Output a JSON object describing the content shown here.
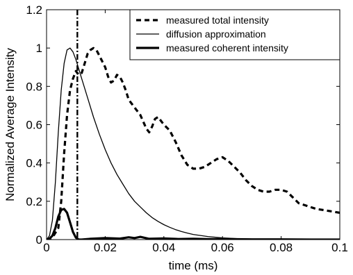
{
  "chart_data": {
    "type": "line",
    "xlabel": "time (ms)",
    "ylabel": "Normalized Average Intensity",
    "xlim": [
      0,
      0.1
    ],
    "ylim": [
      0,
      1.2
    ],
    "x_ticks": [
      0,
      0.02,
      0.04,
      0.06,
      0.08,
      0.1
    ],
    "x_tick_labels": [
      "0",
      "0.02",
      "0.04",
      "0.06",
      "0.08",
      "0.1"
    ],
    "y_ticks": [
      0,
      0.2,
      0.4,
      0.6,
      0.8,
      1,
      1.2
    ],
    "y_tick_labels": [
      "0",
      "0.2",
      "0.4",
      "0.6",
      "0.8",
      "1",
      "1.2"
    ],
    "grid": false,
    "legend_position": "top-right",
    "vertical_marker": {
      "x": 0.0105,
      "style": "dash-dot"
    },
    "series": [
      {
        "name": "measured total intensity",
        "style": "dashed-thick",
        "x": [
          0.0,
          0.002,
          0.004,
          0.005,
          0.006,
          0.007,
          0.008,
          0.009,
          0.01,
          0.011,
          0.012,
          0.013,
          0.014,
          0.015,
          0.016,
          0.017,
          0.018,
          0.019,
          0.02,
          0.021,
          0.022,
          0.023,
          0.024,
          0.025,
          0.026,
          0.027,
          0.028,
          0.03,
          0.032,
          0.034,
          0.035,
          0.036,
          0.037,
          0.038,
          0.039,
          0.04,
          0.042,
          0.044,
          0.046,
          0.048,
          0.05,
          0.052,
          0.054,
          0.056,
          0.058,
          0.06,
          0.062,
          0.064,
          0.066,
          0.068,
          0.07,
          0.072,
          0.074,
          0.076,
          0.078,
          0.08,
          0.082,
          0.084,
          0.086,
          0.088,
          0.09,
          0.092,
          0.094,
          0.096,
          0.098,
          0.1
        ],
        "y": [
          0.0,
          0.01,
          0.06,
          0.2,
          0.45,
          0.65,
          0.78,
          0.84,
          0.88,
          0.86,
          0.87,
          0.92,
          0.97,
          0.99,
          1.0,
          0.99,
          0.96,
          0.93,
          0.9,
          0.85,
          0.82,
          0.83,
          0.86,
          0.85,
          0.82,
          0.78,
          0.73,
          0.69,
          0.65,
          0.58,
          0.56,
          0.59,
          0.63,
          0.64,
          0.62,
          0.6,
          0.57,
          0.51,
          0.44,
          0.39,
          0.37,
          0.37,
          0.38,
          0.4,
          0.42,
          0.43,
          0.41,
          0.38,
          0.35,
          0.31,
          0.28,
          0.26,
          0.25,
          0.25,
          0.26,
          0.26,
          0.25,
          0.22,
          0.19,
          0.18,
          0.17,
          0.16,
          0.155,
          0.15,
          0.145,
          0.14
        ]
      },
      {
        "name": "diffusion approximation",
        "style": "solid-thin",
        "x": [
          0.0,
          0.001,
          0.002,
          0.003,
          0.004,
          0.005,
          0.006,
          0.007,
          0.008,
          0.009,
          0.01,
          0.011,
          0.012,
          0.014,
          0.016,
          0.018,
          0.02,
          0.022,
          0.024,
          0.026,
          0.028,
          0.03,
          0.032,
          0.034,
          0.036,
          0.038,
          0.04,
          0.042,
          0.044,
          0.046,
          0.048,
          0.05,
          0.055,
          0.06,
          0.065,
          0.07,
          0.075,
          0.08,
          0.09,
          0.1
        ],
        "y": [
          0.0,
          0.02,
          0.1,
          0.3,
          0.56,
          0.78,
          0.92,
          0.99,
          1.0,
          0.98,
          0.94,
          0.89,
          0.84,
          0.74,
          0.64,
          0.55,
          0.47,
          0.4,
          0.34,
          0.29,
          0.24,
          0.2,
          0.17,
          0.14,
          0.115,
          0.095,
          0.078,
          0.064,
          0.052,
          0.042,
          0.034,
          0.027,
          0.016,
          0.009,
          0.005,
          0.003,
          0.0015,
          0.0008,
          0.0002,
          0.0
        ]
      },
      {
        "name": "measured coherent intensity",
        "style": "solid-thick",
        "x": [
          0.0,
          0.001,
          0.002,
          0.003,
          0.004,
          0.005,
          0.006,
          0.007,
          0.008,
          0.009,
          0.01,
          0.011,
          0.012,
          0.015,
          0.02,
          0.025,
          0.028,
          0.03,
          0.032,
          0.035,
          0.04,
          0.045,
          0.05,
          0.055,
          0.06,
          0.07,
          0.08,
          0.09,
          0.1
        ],
        "y": [
          0.0,
          0.005,
          0.02,
          0.06,
          0.12,
          0.155,
          0.16,
          0.14,
          0.09,
          0.04,
          0.01,
          0.0,
          0.0,
          0.004,
          0.008,
          0.005,
          0.012,
          0.008,
          0.014,
          0.004,
          0.006,
          0.003,
          0.004,
          0.002,
          0.003,
          0.001,
          0.001,
          0.0,
          0.0
        ]
      }
    ]
  }
}
